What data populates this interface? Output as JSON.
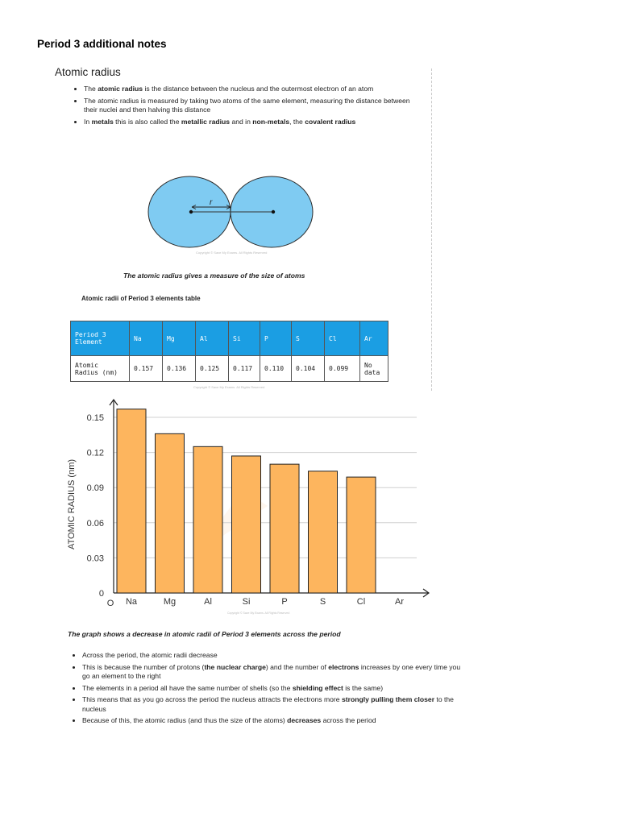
{
  "page": {
    "heading": "Period 3 additional notes"
  },
  "section": {
    "title": "Atomic radius",
    "bullets_top": [
      [
        {
          "t": "The ",
          "b": false
        },
        {
          "t": "atomic radius",
          "b": true
        },
        {
          "t": " is the distance between the nucleus and the outermost electron of an atom",
          "b": false
        }
      ],
      [
        {
          "t": "The atomic radius is measured by taking two atoms of the same element, measuring the distance between their nuclei and then halving this distance",
          "b": false
        }
      ],
      [
        {
          "t": "In ",
          "b": false
        },
        {
          "t": "metals",
          "b": true
        },
        {
          "t": " this is also called the ",
          "b": false
        },
        {
          "t": "metallic radius",
          "b": true
        },
        {
          "t": " and in ",
          "b": false
        },
        {
          "t": "non-metals",
          "b": true
        },
        {
          "t": ", the ",
          "b": false
        },
        {
          "t": "covalent radius",
          "b": true
        }
      ]
    ]
  },
  "diagram": {
    "radius_label": "r",
    "fill_color": "#7fcbf2",
    "stroke_color": "#2a2a2a",
    "copyright": "Copyright © Save My Exams. All Rights Reserved",
    "caption": "The atomic radius gives a measure of the size of atoms"
  },
  "table": {
    "title": "Atomic radii of Period 3 elements table",
    "header_color": "#1b9ee3",
    "header_label": [
      "Period 3",
      "Element"
    ],
    "row_label": [
      "Atomic",
      "Radius (nm)"
    ],
    "elements": [
      "Na",
      "Mg",
      "Al",
      "Si",
      "P",
      "S",
      "Cl",
      "Ar"
    ],
    "values": [
      "0.157",
      "0.136",
      "0.125",
      "0.117",
      "0.110",
      "0.104",
      "0.099",
      [
        "No",
        "data"
      ]
    ],
    "copyright": "Copyright © Save My Exams. All Rights Reserved"
  },
  "chart_data": {
    "type": "bar",
    "categories": [
      "Na",
      "Mg",
      "Al",
      "Si",
      "P",
      "S",
      "Cl",
      "Ar"
    ],
    "values": [
      0.157,
      0.136,
      0.125,
      0.117,
      0.11,
      0.104,
      0.099,
      null
    ],
    "ylabel": "ATOMIC RADIUS (nm)",
    "origin_label": "O",
    "ylim": [
      0,
      0.15
    ],
    "yticks": [
      "0",
      "0.03",
      "0.06",
      "0.09",
      "0.12",
      "0.15"
    ],
    "ytick_values": [
      0,
      0.03,
      0.06,
      0.09,
      0.12,
      0.15
    ],
    "bar_color": "#fdb55e",
    "grid": true,
    "copyright": "Copyright © Save My Exams. All Rights Reserved"
  },
  "chart_caption": "The graph shows a decrease in atomic radii of Period 3 elements across the period",
  "bullets_bottom": [
    [
      {
        "t": "Across the period, the atomic radii decrease",
        "b": false
      }
    ],
    [
      {
        "t": "This is because the number of protons (",
        "b": false
      },
      {
        "t": "the nuclear charge",
        "b": true
      },
      {
        "t": ") and the number of ",
        "b": false
      },
      {
        "t": "electrons",
        "b": true
      },
      {
        "t": " increases by one every time you go an element to the right",
        "b": false
      }
    ],
    [
      {
        "t": "The elements in a period all have the same number of shells (so the ",
        "b": false
      },
      {
        "t": "shielding effect",
        "b": true
      },
      {
        "t": " is the same)",
        "b": false
      }
    ],
    [
      {
        "t": "This means that as you go across the period the nucleus attracts the electrons more ",
        "b": false
      },
      {
        "t": "strongly pulling them closer",
        "b": true
      },
      {
        "t": " to the nucleus",
        "b": false
      }
    ],
    [
      {
        "t": "Because of this, the atomic radius (and thus the size of the atoms) ",
        "b": false
      },
      {
        "t": "decreases",
        "b": true
      },
      {
        "t": " across the period",
        "b": false
      }
    ]
  ]
}
